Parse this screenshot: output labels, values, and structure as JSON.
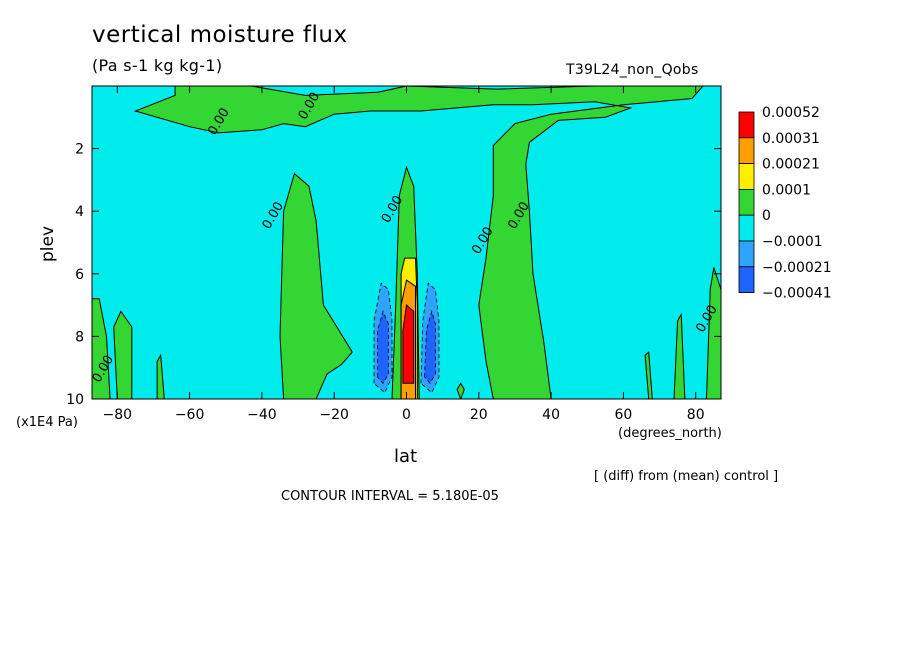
{
  "header": {
    "title": "vertical moisture flux",
    "units": "(Pa s-1 kg kg-1)",
    "run_name": "T39L24_non_Qobs"
  },
  "footer": {
    "y_unit": "(x1E4 Pa)",
    "x_unit": "(degrees_north)",
    "diff_note": "[ (diff) from (mean) control ]",
    "contour_interval": "CONTOUR INTERVAL = 5.180E-05"
  },
  "chart_data": {
    "type": "heatmap",
    "title": "vertical moisture flux",
    "xlabel": "lat",
    "ylabel": "plev",
    "xlim": [
      -87,
      87
    ],
    "ylim": [
      10,
      0
    ],
    "x_ticks": [
      -80,
      -60,
      -40,
      -20,
      0,
      20,
      40,
      60,
      80
    ],
    "y_ticks": [
      2,
      4,
      6,
      8,
      10
    ],
    "background_color": "#00ecec",
    "legend": {
      "placement": "right",
      "levels": [
        {
          "label": "0.00052",
          "color": "#ff0000"
        },
        {
          "label": "0.00031",
          "color": "#ff9e00"
        },
        {
          "label": "0.00021",
          "color": "#ffee00"
        },
        {
          "label": "0.0001",
          "color": "#33d633"
        },
        {
          "label": "0",
          "color": "#00ecec"
        },
        {
          "label": "-0.0001",
          "color": "#2ea3ff"
        },
        {
          "label": "-0.00021",
          "color": "#1f64ff"
        }
      ],
      "bottom_label": "-0.00041"
    },
    "contour_labels": [
      {
        "text": "0.00",
        "lat": -51,
        "plev": 1.2
      },
      {
        "text": "0.00",
        "lat": -26,
        "plev": 0.7
      },
      {
        "text": "0.00",
        "lat": -36,
        "plev": 4.2
      },
      {
        "text": "0.00",
        "lat": -3,
        "plev": 4.0
      },
      {
        "text": "0.00",
        "lat": 22,
        "plev": 5.0
      },
      {
        "text": "0.00",
        "lat": 32,
        "plev": 4.2
      },
      {
        "text": "0.00",
        "lat": -83,
        "plev": 9.1
      },
      {
        "text": "0.00",
        "lat": 84,
        "plev": 7.5
      }
    ],
    "regions": [
      {
        "level": "0.0001",
        "points": [
          [
            -64,
            0
          ],
          [
            -43,
            0
          ],
          [
            -28,
            0.3
          ],
          [
            -8,
            0.2
          ],
          [
            0,
            0
          ],
          [
            25,
            0.1
          ],
          [
            52,
            0
          ],
          [
            70,
            0
          ],
          [
            82,
            0
          ],
          [
            79,
            0.4
          ],
          [
            60,
            0.6
          ],
          [
            40,
            0.9
          ],
          [
            30,
            1.2
          ],
          [
            24,
            1.9
          ],
          [
            24,
            3.5
          ],
          [
            22,
            5.5
          ],
          [
            20,
            7
          ],
          [
            22,
            8.8
          ],
          [
            24,
            10
          ],
          [
            40,
            10
          ],
          [
            38,
            8.2
          ],
          [
            35,
            6
          ],
          [
            34,
            4
          ],
          [
            33,
            2.5
          ],
          [
            34,
            1.8
          ],
          [
            42,
            1.1
          ],
          [
            55,
            1
          ],
          [
            62,
            0.7
          ],
          [
            52,
            0.5
          ],
          [
            35,
            0.6
          ],
          [
            24,
            0.6
          ],
          [
            4,
            0.8
          ],
          [
            -10,
            0.8
          ],
          [
            -20,
            0.9
          ],
          [
            -28,
            1.3
          ],
          [
            -34,
            1.2
          ],
          [
            -40,
            1.4
          ],
          [
            -52,
            1.5
          ],
          [
            -60,
            1.3
          ],
          [
            -75,
            0.8
          ],
          [
            -64,
            0.3
          ]
        ]
      },
      {
        "level": "0.0001",
        "points": [
          [
            -34,
            10
          ],
          [
            -35,
            8
          ],
          [
            -34,
            4
          ],
          [
            -31,
            2.8
          ],
          [
            -27,
            3.2
          ],
          [
            -25,
            4.3
          ],
          [
            -23,
            7
          ],
          [
            -15,
            8.5
          ],
          [
            -18,
            8.9
          ],
          [
            -22,
            9.2
          ],
          [
            -25,
            10
          ]
        ]
      },
      {
        "level": "0.0001",
        "points": [
          [
            -4,
            10
          ],
          [
            -3,
            7
          ],
          [
            -2,
            3.5
          ],
          [
            0,
            2.6
          ],
          [
            2,
            3.2
          ],
          [
            3,
            6
          ],
          [
            3.5,
            10
          ]
        ]
      },
      {
        "level": "0.0001",
        "points": [
          [
            -87,
            10
          ],
          [
            -87,
            6.8
          ],
          [
            -85,
            6.8
          ],
          [
            -83,
            8
          ],
          [
            -82,
            10
          ]
        ]
      },
      {
        "level": "0.0001",
        "points": [
          [
            -80,
            10
          ],
          [
            -81,
            7.7
          ],
          [
            -79,
            7.2
          ],
          [
            -76,
            7.7
          ],
          [
            -76,
            10
          ]
        ]
      },
      {
        "level": "0.0001",
        "points": [
          [
            -69,
            10
          ],
          [
            -69,
            8.8
          ],
          [
            -68,
            8.6
          ],
          [
            -67,
            10
          ]
        ]
      },
      {
        "level": "0.0001",
        "points": [
          [
            15,
            10
          ],
          [
            14,
            9.7
          ],
          [
            15,
            9.5
          ],
          [
            16,
            9.7
          ]
        ]
      },
      {
        "level": "0.0001",
        "points": [
          [
            67,
            10
          ],
          [
            66,
            8.6
          ],
          [
            67,
            8.5
          ],
          [
            68,
            10
          ]
        ]
      },
      {
        "level": "0.0001",
        "points": [
          [
            74,
            10
          ],
          [
            75,
            7.5
          ],
          [
            76,
            7.3
          ],
          [
            77,
            10
          ]
        ]
      },
      {
        "level": "0.0001",
        "points": [
          [
            83,
            10
          ],
          [
            84,
            6.5
          ],
          [
            85,
            5.8
          ],
          [
            87,
            6.5
          ],
          [
            87,
            10
          ]
        ]
      },
      {
        "level": "0.00021",
        "points": [
          [
            -1.5,
            10
          ],
          [
            -1.5,
            6
          ],
          [
            -0.5,
            5.5
          ],
          [
            2.5,
            5.5
          ],
          [
            3,
            7
          ],
          [
            3,
            10
          ]
        ]
      },
      {
        "level": "0.00031",
        "points": [
          [
            -1.5,
            10
          ],
          [
            -1.5,
            7
          ],
          [
            0,
            6.2
          ],
          [
            2.5,
            6.4
          ],
          [
            2.5,
            10
          ]
        ]
      },
      {
        "level": "0.00052",
        "points": [
          [
            -1,
            9.5
          ],
          [
            -1,
            7.8
          ],
          [
            0,
            7
          ],
          [
            2,
            7.2
          ],
          [
            2,
            9.5
          ]
        ]
      },
      {
        "level": "-0.0001",
        "points": [
          [
            -9,
            9.5
          ],
          [
            -9,
            7.5
          ],
          [
            -7,
            6.3
          ],
          [
            -5,
            6.5
          ],
          [
            -4,
            7.5
          ],
          [
            -4,
            9.3
          ],
          [
            -6,
            9.8
          ]
        ]
      },
      {
        "level": "-0.00021",
        "points": [
          [
            -8,
            9.3
          ],
          [
            -8,
            7.8
          ],
          [
            -6.5,
            7.2
          ],
          [
            -5,
            7.6
          ],
          [
            -5,
            9.2
          ],
          [
            -6.5,
            9.5
          ]
        ]
      },
      {
        "level": "-0.0001",
        "points": [
          [
            4,
            9.5
          ],
          [
            4.5,
            7.5
          ],
          [
            6,
            6.3
          ],
          [
            8,
            6.5
          ],
          [
            9,
            7.5
          ],
          [
            9,
            9.3
          ],
          [
            7,
            9.8
          ]
        ]
      },
      {
        "level": "-0.00021",
        "points": [
          [
            5,
            9.3
          ],
          [
            5.5,
            7.8
          ],
          [
            7,
            7.2
          ],
          [
            8,
            7.6
          ],
          [
            8,
            9.2
          ],
          [
            6.5,
            9.5
          ]
        ]
      }
    ]
  }
}
